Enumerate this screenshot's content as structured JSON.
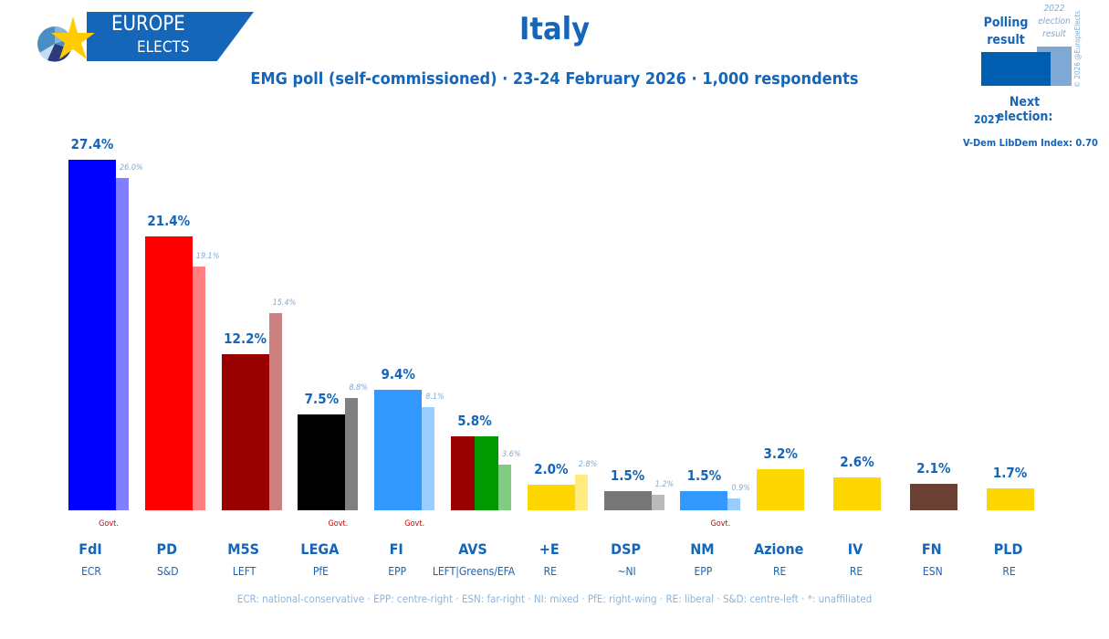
{
  "logo": {
    "line1": "EUROPE",
    "line2": "ELECTS"
  },
  "title": "Italy",
  "subtitle": "EMG poll (self-commissioned) · 23-24 February 2026 · 1,000 respondents",
  "legend": {
    "polling": "Polling result",
    "previous": "2022 election result",
    "copyright": "© 2026 @EuropeElects",
    "next_election_label": "Next election:",
    "next_election": "2027",
    "vdem": "V-Dem LibDem Index: 0.70",
    "polling_color": "#005eb0",
    "previous_color": "#7fa9d4"
  },
  "glossary": "ECR: national-conservative · EPP: centre-right · ESN: far-right · NI: mixed · PfE: right-wing · RE: liberal · S&D: centre-left · *: unaffiliated",
  "govt_label": "Govt.",
  "chart_data": {
    "type": "bar",
    "ylim": [
      0,
      30
    ],
    "grid": false,
    "categories": [
      "FdI",
      "PD",
      "M5S",
      "LEGA",
      "FI",
      "AVS",
      "+E",
      "DSP",
      "NM",
      "Azione",
      "IV",
      "FN",
      "PLD"
    ],
    "groups": [
      "ECR",
      "S&D",
      "LEFT",
      "PfE",
      "EPP",
      "LEFT|Greens/EFA",
      "RE",
      "~NI",
      "EPP",
      "RE",
      "RE",
      "ESN",
      "RE"
    ],
    "government": [
      true,
      false,
      false,
      true,
      true,
      false,
      false,
      false,
      true,
      false,
      false,
      false,
      false
    ],
    "series": [
      {
        "name": "Polling result",
        "values": [
          27.4,
          21.4,
          12.2,
          7.5,
          9.4,
          5.8,
          2.0,
          1.5,
          1.5,
          3.2,
          2.6,
          2.1,
          1.7
        ],
        "labels": [
          "27.4%",
          "21.4%",
          "12.2%",
          "7.5%",
          "9.4%",
          "5.8%",
          "2.0%",
          "1.5%",
          "1.5%",
          "3.2%",
          "2.6%",
          "2.1%",
          "1.7%"
        ]
      },
      {
        "name": "2022 election result",
        "values": [
          26.0,
          19.1,
          15.4,
          8.8,
          8.1,
          3.6,
          2.8,
          1.2,
          0.9,
          null,
          null,
          null,
          null
        ],
        "labels": [
          "26.0%",
          "19.1%",
          "15.4%",
          "8.8%",
          "8.1%",
          "3.6%",
          "2.8%",
          "1.2%",
          "0.9%",
          "",
          "",
          "",
          ""
        ]
      }
    ],
    "colors": [
      [
        "#0000ff"
      ],
      [
        "#ff0000"
      ],
      [
        "#990000"
      ],
      [
        "#000000"
      ],
      [
        "#3399ff"
      ],
      [
        "#990000",
        "#009900"
      ],
      [
        "#ffd700"
      ],
      [
        "#777777"
      ],
      [
        "#3399ff"
      ],
      [
        "#ffd700"
      ],
      [
        "#ffd700"
      ],
      [
        "#6b4034"
      ],
      [
        "#ffd700"
      ]
    ],
    "prev_colors": [
      "#8080ff",
      "#ff8080",
      "#cc8080",
      "#808080",
      "#99ccff",
      "#80cc80",
      "#ffeb80",
      "#bbbbbb",
      "#99ccff",
      "",
      "",
      "",
      ""
    ]
  }
}
